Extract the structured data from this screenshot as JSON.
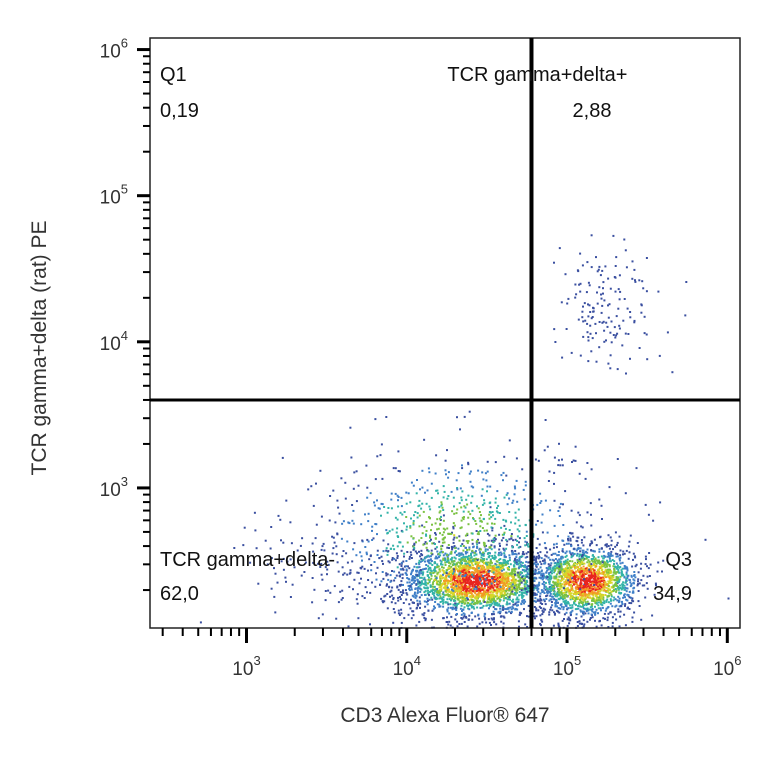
{
  "chart_data": {
    "type": "scatter",
    "subtype": "flow-cytometry-density-dot-plot",
    "xlabel": "CD3 Alexa Fluor® 647",
    "ylabel": "TCR gamma+delta (rat) PE",
    "x_scale": "log",
    "y_scale": "log",
    "xlim": [
      250,
      1200000
    ],
    "ylim": [
      110,
      1200000
    ],
    "x_ticks": [
      {
        "value": 1000,
        "base": "10",
        "exp": "3"
      },
      {
        "value": 10000,
        "base": "10",
        "exp": "4"
      },
      {
        "value": 100000,
        "base": "10",
        "exp": "5"
      },
      {
        "value": 1000000,
        "base": "10",
        "exp": "6"
      }
    ],
    "y_ticks": [
      {
        "value": 1000,
        "base": "10",
        "exp": "3"
      },
      {
        "value": 10000,
        "base": "10",
        "exp": "4"
      },
      {
        "value": 100000,
        "base": "10",
        "exp": "5"
      },
      {
        "value": 1000000,
        "base": "10",
        "exp": "6"
      }
    ],
    "gates": {
      "x": 60000,
      "y": 4000
    },
    "quadrants": [
      {
        "name": "Q1",
        "value": "0,19",
        "position": "top-left"
      },
      {
        "name": "TCR gamma+delta+",
        "value": "2,88",
        "position": "top-right"
      },
      {
        "name": "TCR gamma+delta-",
        "value": "62,0",
        "position": "bottom-left"
      },
      {
        "name": "Q3",
        "value": "34,9",
        "position": "bottom-right"
      }
    ],
    "populations": [
      {
        "cx": 27000,
        "cy": 230,
        "sx_dec": 0.23,
        "sy_dec": 0.12,
        "weight": 0.46
      },
      {
        "cx": 130000,
        "cy": 230,
        "sx_dec": 0.16,
        "sy_dec": 0.12,
        "weight": 0.33
      },
      {
        "cx": 20000,
        "cy": 500,
        "sx_dec": 0.45,
        "sy_dec": 0.28,
        "weight": 0.16
      },
      {
        "cx": 170000,
        "cy": 18000,
        "sx_dec": 0.16,
        "sy_dec": 0.22,
        "weight": 0.03
      },
      {
        "cx": 5000,
        "cy": 300,
        "sx_dec": 0.4,
        "sy_dec": 0.15,
        "weight": 0.02
      }
    ],
    "palette": [
      "#3a4fa0",
      "#3f7fc8",
      "#33b3a8",
      "#7bc242",
      "#d7d62a",
      "#f39a24",
      "#e8251f"
    ],
    "grid": false,
    "legend": "none"
  }
}
